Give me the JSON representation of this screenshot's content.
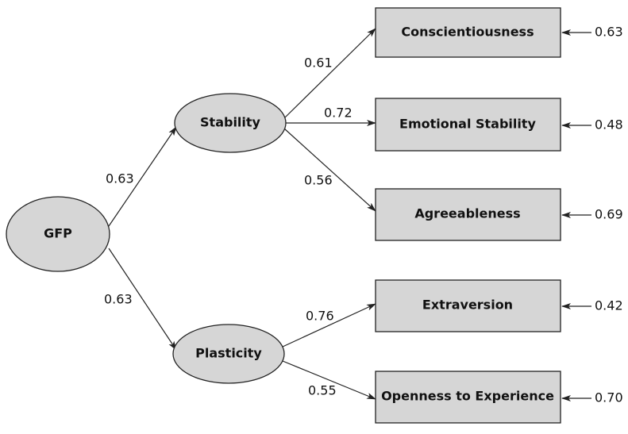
{
  "nodes": [
    {
      "label": "GFP"
    },
    {
      "label": "Stability"
    },
    {
      "label": "Plasticity"
    },
    {
      "label": "Conscientiousness"
    },
    {
      "label": "Emotional Stability"
    },
    {
      "label": "Agreeableness"
    },
    {
      "label": "Extraversion"
    },
    {
      "label": "Openness to Experience"
    }
  ],
  "edges": [
    {
      "from": "GFP",
      "to": "Stability",
      "label": "0.63"
    },
    {
      "from": "GFP",
      "to": "Plasticity",
      "label": "0.63"
    },
    {
      "from": "Stability",
      "to": "Conscientiousness",
      "label": "0.61"
    },
    {
      "from": "Stability",
      "to": "Emotional Stability",
      "label": "0.72"
    },
    {
      "from": "Stability",
      "to": "Agreeableness",
      "label": "0.56"
    },
    {
      "from": "Plasticity",
      "to": "Extraversion",
      "label": "0.76"
    },
    {
      "from": "Plasticity",
      "to": "Openness to Experience",
      "label": "0.55"
    }
  ],
  "residuals": [
    "0.63",
    "0.48",
    "0.69",
    "0.42",
    "0.70"
  ]
}
